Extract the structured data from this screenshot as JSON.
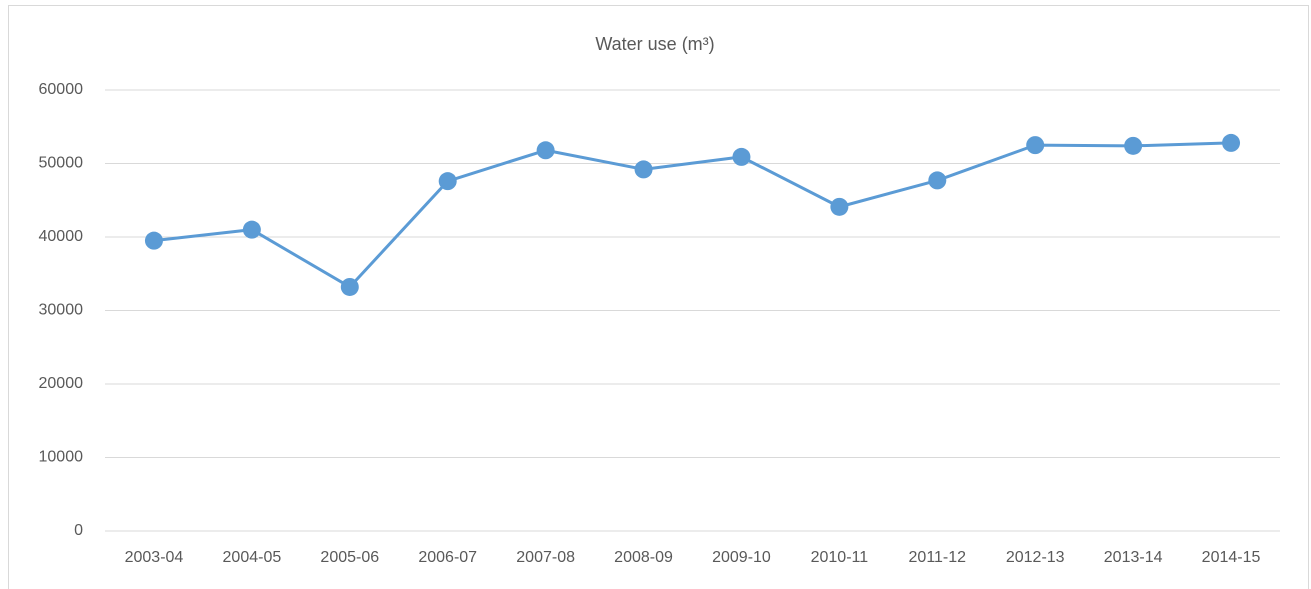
{
  "chart_data": {
    "type": "line",
    "title": "Water use (m³)",
    "categories": [
      "2003-04",
      "2004-05",
      "2005-06",
      "2006-07",
      "2007-08",
      "2008-09",
      "2009-10",
      "2010-11",
      "2011-12",
      "2012-13",
      "2013-14",
      "2014-15"
    ],
    "values": [
      39500,
      41000,
      33200,
      47600,
      51800,
      49200,
      50900,
      44100,
      47700,
      52500,
      52400,
      52800
    ],
    "color": "#5b9bd5",
    "ylim": [
      0,
      60000
    ],
    "yticks": [
      0,
      10000,
      20000,
      30000,
      40000,
      50000,
      60000
    ],
    "grid": true
  }
}
